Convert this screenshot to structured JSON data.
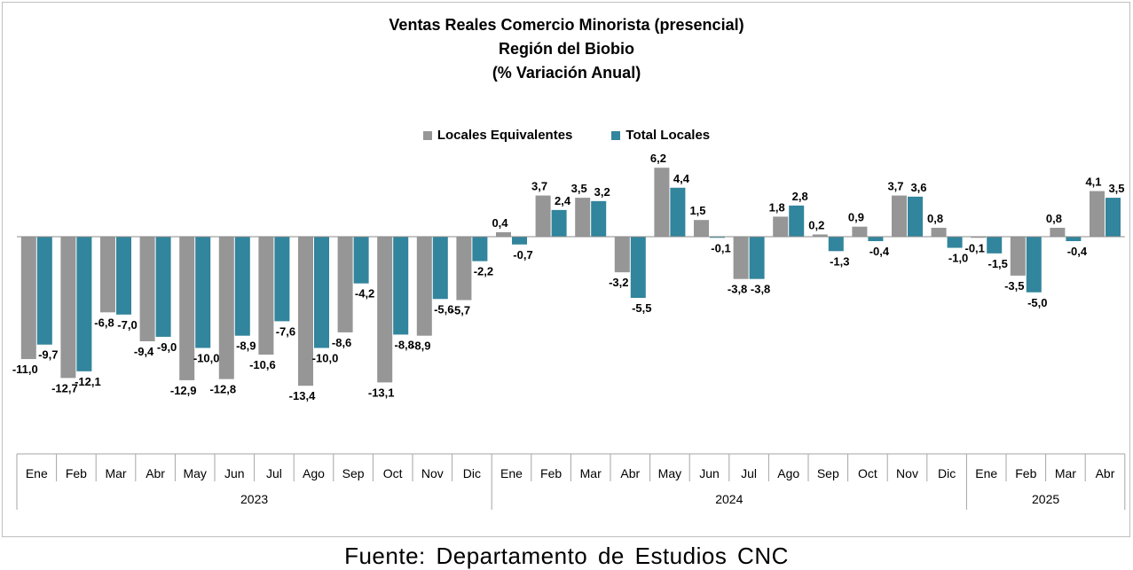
{
  "chart_data": {
    "type": "bar",
    "title": [
      "Ventas Reales Comercio Minorista (presencial)",
      "Región del Biobio",
      "(% Variación Anual)"
    ],
    "categories": [
      "Ene",
      "Feb",
      "Mar",
      "Abr",
      "May",
      "Jun",
      "Jul",
      "Ago",
      "Sep",
      "Oct",
      "Nov",
      "Dic",
      "Ene",
      "Feb",
      "Mar",
      "Abr",
      "May",
      "Jun",
      "Jul",
      "Ago",
      "Sep",
      "Oct",
      "Nov",
      "Dic",
      "Ene",
      "Feb",
      "Mar",
      "Abr"
    ],
    "year_groups": [
      {
        "label": "2023",
        "count": 12
      },
      {
        "label": "2024",
        "count": 12
      },
      {
        "label": "2025",
        "count": 4
      }
    ],
    "series": [
      {
        "name": "Locales Equivalentes",
        "color": "#969696",
        "values": [
          -11.0,
          -12.7,
          -6.8,
          -9.4,
          -12.9,
          -12.8,
          -10.6,
          -13.4,
          -8.6,
          -13.1,
          -8.9,
          -5.7,
          0.4,
          3.7,
          3.5,
          -3.2,
          6.2,
          1.5,
          -3.8,
          1.8,
          0.2,
          0.9,
          3.7,
          0.8,
          -0.1,
          -3.5,
          0.8,
          4.1
        ],
        "labels": [
          "-11,0",
          "-12,7",
          "-6,8",
          "-9,4",
          "-12,9",
          "-12,8",
          "-10,6",
          "-13,4",
          "-8,6",
          "-13,1",
          "-8,9",
          "-5,7",
          "0,4",
          "3,7",
          "3,5",
          "-3,2",
          "6,2",
          "1,5",
          "-3,8",
          "1,8",
          "0,2",
          "0,9",
          "3,7",
          "0,8",
          "-0,1",
          "-3,5",
          "0,8",
          "4,1"
        ]
      },
      {
        "name": "Total Locales",
        "color": "#31859c",
        "values": [
          -9.7,
          -12.1,
          -7.0,
          -9.0,
          -10.0,
          -8.9,
          -7.6,
          -10.0,
          -4.2,
          -8.8,
          -5.6,
          -2.2,
          -0.7,
          2.4,
          3.2,
          -5.5,
          4.4,
          -0.1,
          -3.8,
          2.8,
          -1.3,
          -0.4,
          3.6,
          -1.0,
          -1.5,
          -5.0,
          -0.4,
          3.5
        ],
        "labels": [
          "-9,7",
          "-12,1",
          "-7,0",
          "-9,0",
          "-10,0",
          "-8,9",
          "-7,6",
          "-10,0",
          "-4,2",
          "-8,8",
          "-5,6",
          "-2,2",
          "-0,7",
          "2,4",
          "3,2",
          "-5,5",
          "4,4",
          "-0,1",
          "-3,8",
          "2,8",
          "-1,3",
          "-0,4",
          "3,6",
          "-1,0",
          "-1,5",
          "-5,0",
          "-0,4",
          "3,5"
        ]
      }
    ],
    "legend_position": "top-center",
    "grid": false
  },
  "source": "Fuente:  Departamento  de Estudios  CNC"
}
